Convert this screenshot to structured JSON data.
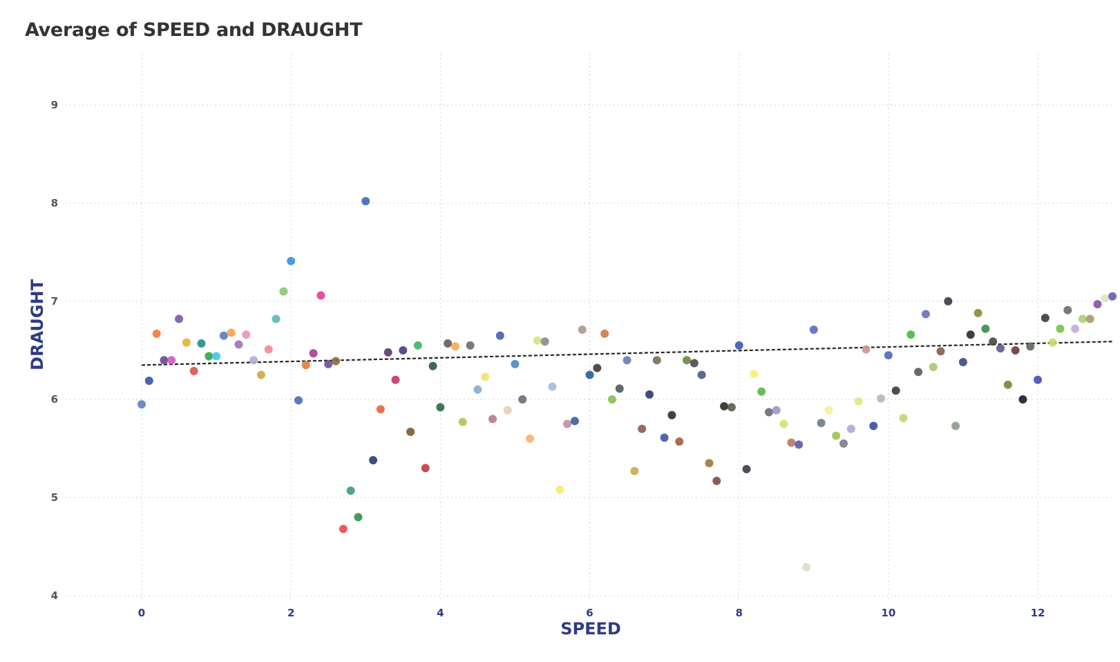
{
  "chart_data": {
    "type": "scatter",
    "title": "Average of SPEED and DRAUGHT",
    "xlabel": "SPEED",
    "ylabel": "DRAUGHT",
    "xlim": [
      -1,
      13
    ],
    "ylim": [
      4,
      9.5
    ],
    "x_ticks": [
      "0",
      "2",
      "4",
      "6",
      "8",
      "10",
      "12"
    ],
    "y_ticks": [
      "4",
      "5",
      "6",
      "7",
      "8",
      "9"
    ],
    "grid": true,
    "legend": "none",
    "trendline": {
      "style": "dashed",
      "x": [
        0,
        13
      ],
      "y": [
        6.35,
        6.59
      ]
    },
    "points": [
      {
        "x": 0.0,
        "y": 5.95,
        "color": "#5b7fc7"
      },
      {
        "x": 0.1,
        "y": 6.19,
        "color": "#3b4fa0"
      },
      {
        "x": 0.2,
        "y": 6.67,
        "color": "#f07a3c"
      },
      {
        "x": 0.3,
        "y": 6.4,
        "color": "#6b4a8a"
      },
      {
        "x": 0.4,
        "y": 6.4,
        "color": "#d05bc0"
      },
      {
        "x": 0.5,
        "y": 6.82,
        "color": "#7a5aa8"
      },
      {
        "x": 0.6,
        "y": 6.58,
        "color": "#e3b030"
      },
      {
        "x": 0.7,
        "y": 6.29,
        "color": "#e05050"
      },
      {
        "x": 0.8,
        "y": 6.57,
        "color": "#2a8a8a"
      },
      {
        "x": 0.9,
        "y": 6.44,
        "color": "#2ea84a"
      },
      {
        "x": 1.0,
        "y": 6.44,
        "color": "#3ac8e8"
      },
      {
        "x": 1.1,
        "y": 6.65,
        "color": "#5a7ac8"
      },
      {
        "x": 1.2,
        "y": 6.68,
        "color": "#f8a050"
      },
      {
        "x": 1.3,
        "y": 6.56,
        "color": "#a070b8"
      },
      {
        "x": 1.4,
        "y": 6.66,
        "color": "#e890c0"
      },
      {
        "x": 1.5,
        "y": 6.4,
        "color": "#b8a8d8"
      },
      {
        "x": 1.6,
        "y": 6.25,
        "color": "#d0a840"
      },
      {
        "x": 1.7,
        "y": 6.51,
        "color": "#f08890"
      },
      {
        "x": 1.8,
        "y": 6.82,
        "color": "#58b8b0"
      },
      {
        "x": 1.9,
        "y": 7.1,
        "color": "#88c870"
      },
      {
        "x": 2.0,
        "y": 7.41,
        "color": "#3a90d8"
      },
      {
        "x": 2.1,
        "y": 5.99,
        "color": "#4a6ab8"
      },
      {
        "x": 2.2,
        "y": 6.35,
        "color": "#e87838"
      },
      {
        "x": 2.3,
        "y": 6.47,
        "color": "#a83a98"
      },
      {
        "x": 2.4,
        "y": 7.06,
        "color": "#e83898"
      },
      {
        "x": 2.5,
        "y": 6.36,
        "color": "#6a4a98"
      },
      {
        "x": 2.6,
        "y": 6.39,
        "color": "#8a6a3a"
      },
      {
        "x": 2.7,
        "y": 4.68,
        "color": "#e84848"
      },
      {
        "x": 2.8,
        "y": 5.07,
        "color": "#3a9a8a"
      },
      {
        "x": 2.9,
        "y": 4.8,
        "color": "#3a8a4a"
      },
      {
        "x": 3.0,
        "y": 8.02,
        "color": "#3a6ab8"
      },
      {
        "x": 3.1,
        "y": 5.38,
        "color": "#2a3a6a"
      },
      {
        "x": 3.2,
        "y": 5.9,
        "color": "#e06838"
      },
      {
        "x": 3.3,
        "y": 6.48,
        "color": "#5a3a6a"
      },
      {
        "x": 3.4,
        "y": 6.2,
        "color": "#c03868"
      },
      {
        "x": 3.5,
        "y": 6.5,
        "color": "#4a3a7a"
      },
      {
        "x": 3.6,
        "y": 5.67,
        "color": "#7a5a2a"
      },
      {
        "x": 3.7,
        "y": 6.55,
        "color": "#38b858"
      },
      {
        "x": 3.8,
        "y": 5.3,
        "color": "#c83838"
      },
      {
        "x": 3.9,
        "y": 6.34,
        "color": "#2a5a3a"
      },
      {
        "x": 4.0,
        "y": 5.92,
        "color": "#2a6a3a"
      },
      {
        "x": 4.1,
        "y": 6.57,
        "color": "#6a5a5a"
      },
      {
        "x": 4.2,
        "y": 6.54,
        "color": "#f8a858"
      },
      {
        "x": 4.3,
        "y": 5.77,
        "color": "#a8c858"
      },
      {
        "x": 4.4,
        "y": 6.55,
        "color": "#6a6a6a"
      },
      {
        "x": 4.5,
        "y": 6.1,
        "color": "#88a8d8"
      },
      {
        "x": 4.6,
        "y": 6.23,
        "color": "#f8e070"
      },
      {
        "x": 4.7,
        "y": 5.8,
        "color": "#b87890"
      },
      {
        "x": 4.8,
        "y": 6.65,
        "color": "#4a5ab0"
      },
      {
        "x": 4.9,
        "y": 5.89,
        "color": "#e0d0b8"
      },
      {
        "x": 5.0,
        "y": 6.36,
        "color": "#4a88c8"
      },
      {
        "x": 5.1,
        "y": 6.0,
        "color": "#6a6a7a"
      },
      {
        "x": 5.2,
        "y": 5.6,
        "color": "#f8b070"
      },
      {
        "x": 5.3,
        "y": 6.6,
        "color": "#d8e080"
      },
      {
        "x": 5.4,
        "y": 6.59,
        "color": "#8a8a8a"
      },
      {
        "x": 5.5,
        "y": 6.13,
        "color": "#a8b8e0"
      },
      {
        "x": 5.6,
        "y": 5.08,
        "color": "#f8e878"
      },
      {
        "x": 5.7,
        "y": 5.75,
        "color": "#b890a0"
      },
      {
        "x": 5.8,
        "y": 5.78,
        "color": "#3a5aa8"
      },
      {
        "x": 5.9,
        "y": 6.71,
        "color": "#a89888"
      },
      {
        "x": 6.0,
        "y": 6.25,
        "color": "#2a5aa0"
      },
      {
        "x": 6.1,
        "y": 6.32,
        "color": "#3a3a3a"
      },
      {
        "x": 6.2,
        "y": 6.67,
        "color": "#d07848"
      },
      {
        "x": 6.3,
        "y": 6.0,
        "color": "#8ac048"
      },
      {
        "x": 6.4,
        "y": 6.11,
        "color": "#4a5a5a"
      },
      {
        "x": 6.5,
        "y": 6.4,
        "color": "#6a7ab8"
      },
      {
        "x": 6.6,
        "y": 5.27,
        "color": "#c8a850"
      },
      {
        "x": 6.7,
        "y": 5.7,
        "color": "#8a5a5a"
      },
      {
        "x": 6.8,
        "y": 6.05,
        "color": "#2a3a6a"
      },
      {
        "x": 6.9,
        "y": 6.4,
        "color": "#7a6a5a"
      },
      {
        "x": 7.0,
        "y": 5.61,
        "color": "#3a5a9a"
      },
      {
        "x": 7.1,
        "y": 5.84,
        "color": "#2a2a3a"
      },
      {
        "x": 7.2,
        "y": 5.57,
        "color": "#a85a38"
      },
      {
        "x": 7.3,
        "y": 6.4,
        "color": "#6a8a3a"
      },
      {
        "x": 7.4,
        "y": 6.37,
        "color": "#4a4a4a"
      },
      {
        "x": 7.5,
        "y": 6.25,
        "color": "#4a5a8a"
      },
      {
        "x": 7.6,
        "y": 5.35,
        "color": "#9a7a3a"
      },
      {
        "x": 7.7,
        "y": 5.17,
        "color": "#7a4a4a"
      },
      {
        "x": 7.8,
        "y": 5.93,
        "color": "#2a2a2a"
      },
      {
        "x": 7.9,
        "y": 5.92,
        "color": "#5a5a4a"
      },
      {
        "x": 8.0,
        "y": 6.55,
        "color": "#3a5ab0"
      },
      {
        "x": 8.1,
        "y": 5.29,
        "color": "#3a3a4a"
      },
      {
        "x": 8.2,
        "y": 6.26,
        "color": "#f8f070"
      },
      {
        "x": 8.3,
        "y": 6.08,
        "color": "#58b848"
      },
      {
        "x": 8.4,
        "y": 5.87,
        "color": "#6a6a7a"
      },
      {
        "x": 8.5,
        "y": 5.89,
        "color": "#9898c8"
      },
      {
        "x": 8.6,
        "y": 5.75,
        "color": "#d8e070"
      },
      {
        "x": 8.7,
        "y": 5.56,
        "color": "#b87868"
      },
      {
        "x": 8.8,
        "y": 5.54,
        "color": "#5a5aa8"
      },
      {
        "x": 8.9,
        "y": 4.29,
        "color": "#d8e0c8"
      },
      {
        "x": 9.0,
        "y": 6.71,
        "color": "#5a6ac0"
      },
      {
        "x": 9.1,
        "y": 5.76,
        "color": "#6a7a8a"
      },
      {
        "x": 9.2,
        "y": 5.89,
        "color": "#f8f090"
      },
      {
        "x": 9.3,
        "y": 5.63,
        "color": "#98c848"
      },
      {
        "x": 9.4,
        "y": 5.55,
        "color": "#7a7a8a"
      },
      {
        "x": 9.5,
        "y": 5.7,
        "color": "#a8a8d8"
      },
      {
        "x": 9.6,
        "y": 5.98,
        "color": "#e0e888"
      },
      {
        "x": 9.7,
        "y": 6.51,
        "color": "#c89888"
      },
      {
        "x": 9.8,
        "y": 5.73,
        "color": "#3a4aa0"
      },
      {
        "x": 9.9,
        "y": 6.01,
        "color": "#b8b8a8"
      },
      {
        "x": 10.0,
        "y": 6.45,
        "color": "#4a6ab8"
      },
      {
        "x": 10.1,
        "y": 6.09,
        "color": "#3a3a3a"
      },
      {
        "x": 10.2,
        "y": 5.81,
        "color": "#c8d078"
      },
      {
        "x": 10.3,
        "y": 6.66,
        "color": "#48b848"
      },
      {
        "x": 10.4,
        "y": 6.28,
        "color": "#5a5a5a"
      },
      {
        "x": 10.5,
        "y": 6.87,
        "color": "#6a6ac0"
      },
      {
        "x": 10.6,
        "y": 6.33,
        "color": "#a8c868"
      },
      {
        "x": 10.7,
        "y": 6.49,
        "color": "#8a5a4a"
      },
      {
        "x": 10.8,
        "y": 7.0,
        "color": "#3a3a4a"
      },
      {
        "x": 10.9,
        "y": 5.73,
        "color": "#8a9a8a"
      },
      {
        "x": 11.0,
        "y": 6.38,
        "color": "#3a4a7a"
      },
      {
        "x": 11.1,
        "y": 6.66,
        "color": "#2a2a2a"
      },
      {
        "x": 11.2,
        "y": 6.88,
        "color": "#8a8a3a"
      },
      {
        "x": 11.3,
        "y": 6.72,
        "color": "#3a8a4a"
      },
      {
        "x": 11.4,
        "y": 6.59,
        "color": "#4a4a3a"
      },
      {
        "x": 11.5,
        "y": 6.52,
        "color": "#5a5a8a"
      },
      {
        "x": 11.6,
        "y": 6.15,
        "color": "#6a8a3a"
      },
      {
        "x": 11.7,
        "y": 6.5,
        "color": "#6a3a3a"
      },
      {
        "x": 11.8,
        "y": 6.0,
        "color": "#1a1a2a"
      },
      {
        "x": 11.9,
        "y": 6.54,
        "color": "#5a6a5a"
      },
      {
        "x": 12.0,
        "y": 6.2,
        "color": "#4a4ab0"
      },
      {
        "x": 12.1,
        "y": 6.83,
        "color": "#3a3a3a"
      },
      {
        "x": 12.2,
        "y": 6.58,
        "color": "#c8d868"
      },
      {
        "x": 12.3,
        "y": 6.72,
        "color": "#78c048"
      },
      {
        "x": 12.4,
        "y": 6.91,
        "color": "#6a6a6a"
      },
      {
        "x": 12.5,
        "y": 6.72,
        "color": "#c8a8d8"
      },
      {
        "x": 12.6,
        "y": 6.82,
        "color": "#a8d070"
      },
      {
        "x": 12.7,
        "y": 6.82,
        "color": "#a89868"
      },
      {
        "x": 12.8,
        "y": 6.97,
        "color": "#8a4aa8"
      },
      {
        "x": 12.9,
        "y": 7.03,
        "color": "#d8e8c8"
      },
      {
        "x": 13.0,
        "y": 7.05,
        "color": "#6a5ab0"
      }
    ]
  }
}
